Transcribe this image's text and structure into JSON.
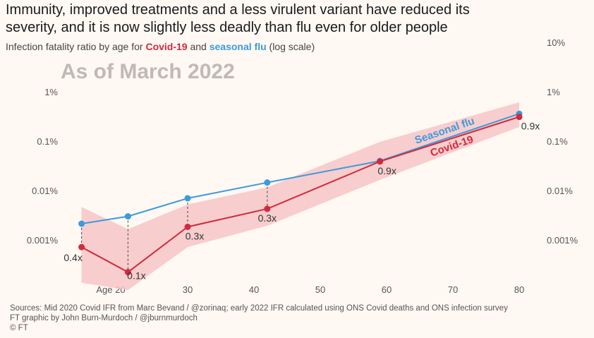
{
  "chart_data": {
    "type": "line",
    "title": [
      "Immunity, improved treatments and a less virulent variant have reduced its",
      "severity, and it is now slightly less deadly than flu even for older people"
    ],
    "subtitle": [
      "Infection fatality ratio by age for ",
      "Covid-19",
      " and ",
      "seasonal flu",
      " (log scale)"
    ],
    "annotation": "As of March 2022",
    "log_scale": true,
    "x": [
      14,
      21,
      30,
      42,
      59,
      80
    ],
    "xlim": [
      12,
      84
    ],
    "xticks": [
      {
        "value": 20,
        "label": "Age 20"
      },
      30,
      40,
      50,
      60,
      70,
      80
    ],
    "ylim": [
      0.0001,
      10
    ],
    "yticks": [
      {
        "value": 0.001,
        "label": "0.001%"
      },
      {
        "value": 0.01,
        "label": "0.01%"
      },
      {
        "value": 0.1,
        "label": "0.1%"
      },
      {
        "value": 1,
        "label": "1%"
      },
      {
        "value": 10,
        "label": "10%"
      }
    ],
    "series": [
      {
        "name": "Seasonal flu",
        "color": "#3b9bdc",
        "values": [
          0.0022,
          0.0031,
          0.0072,
          0.015,
          0.041,
          0.37
        ]
      },
      {
        "name": "Covid-19",
        "color": "#d12a3c",
        "values": [
          0.00074,
          0.00023,
          0.0019,
          0.0044,
          0.04,
          0.32
        ]
      }
    ],
    "band": {
      "color": "#f7c6c6",
      "upper": [
        0.0048,
        0.0017,
        0.0054,
        0.012,
        0.1,
        0.63
      ],
      "lower": [
        0.00014,
        0.0001,
        0.00074,
        0.002,
        0.017,
        0.2
      ]
    },
    "ratio_labels": [
      "0.4x",
      "0.1x",
      "0.3x",
      "0.3x",
      "0.9x",
      "0.9x"
    ],
    "sources": [
      "Sources: Mid 2020 Covid IFR from Marc Bevand / @zorinaq; early 2022 IFR calculated using ONS Covid deaths and ONS infection survey",
      "FT graphic by John Burn-Murdoch / @jburnmurdoch",
      "© FT"
    ]
  }
}
